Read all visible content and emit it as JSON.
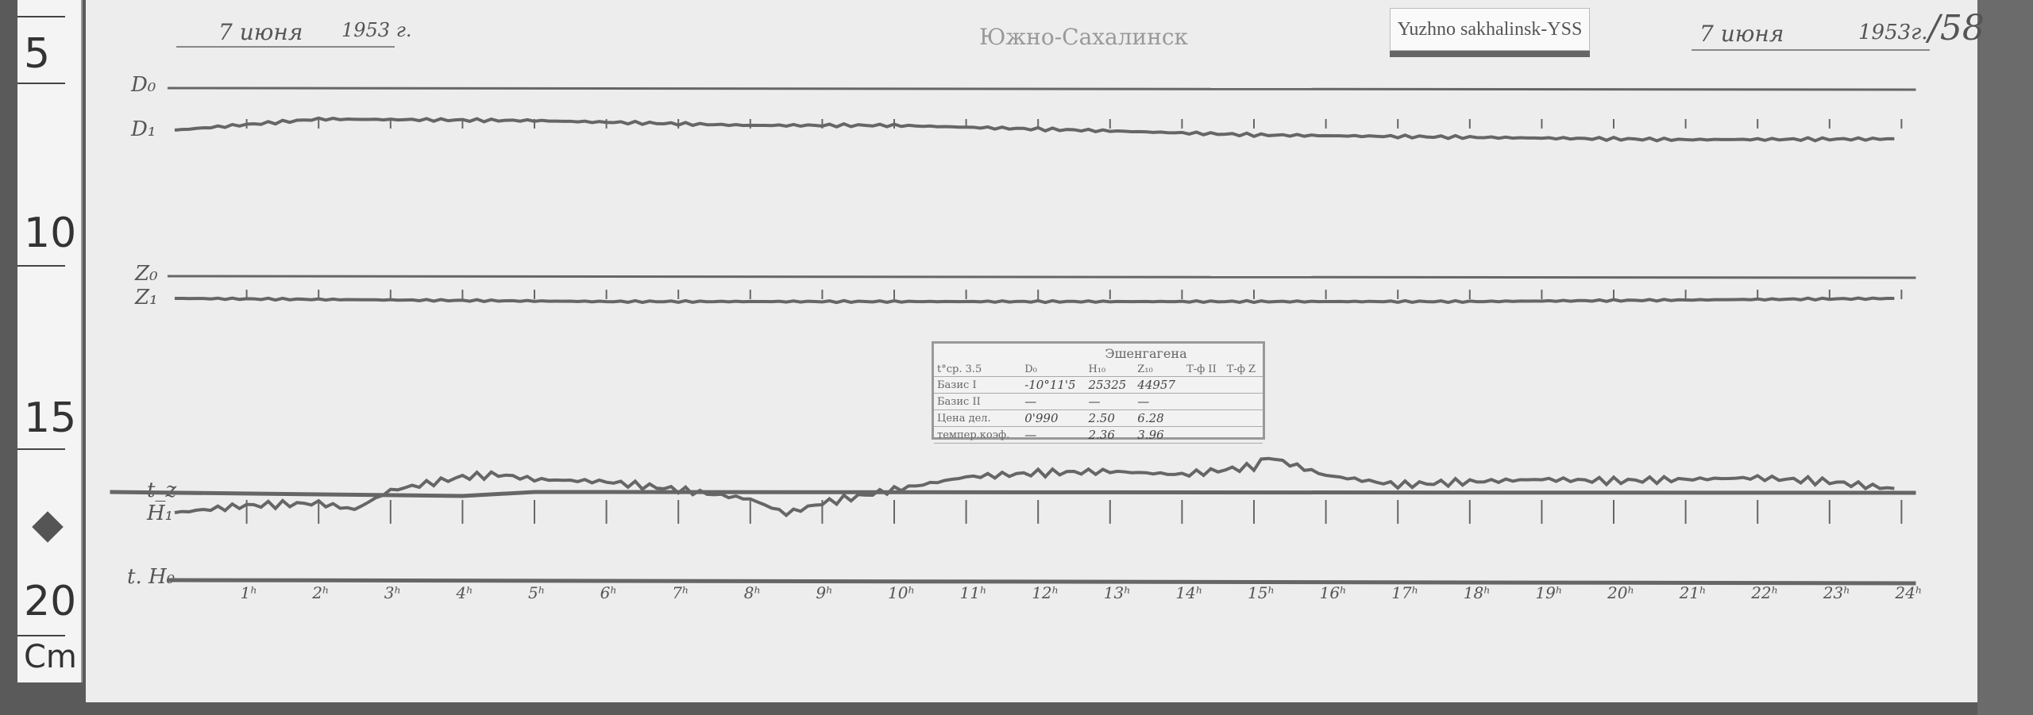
{
  "ruler": {
    "marks": [
      "5",
      "10",
      "15",
      "20"
    ],
    "unit": "Cm"
  },
  "header": {
    "left_date": "7 июня",
    "left_year": "1953 г.",
    "station": "Южно-Сахалинск",
    "tag": "Yuzhno sakhalinsk-YSS",
    "right_date": "7 июня",
    "right_year": "1953г.",
    "sheet_number": "/58"
  },
  "trace_labels": {
    "d0": "D₀",
    "d1": "D₁",
    "z0": "Z₀",
    "z1": "Z₁",
    "tz": "t_z",
    "h": "H₁",
    "th": "t. H₀"
  },
  "calibration_table": {
    "title": "Эшенгагена",
    "headers": [
      "t°ср. 3.5",
      "D₀",
      "H₁₀",
      "Z₁₀",
      "Т-ф II",
      "Т-ф Z"
    ],
    "rows": [
      [
        "Базис I",
        "-10°11'5",
        "25325",
        "44957",
        "",
        ""
      ],
      [
        "Базис II",
        "—",
        "—",
        "—",
        "",
        ""
      ],
      [
        "Цена дел.",
        "0'990",
        "2.50",
        "6.28",
        "",
        ""
      ],
      [
        "темпер.коэф.",
        "—",
        "2.36",
        "3.96",
        "",
        ""
      ]
    ]
  },
  "time_axis": {
    "hours": [
      "1ʰ",
      "2ʰ",
      "3ʰ",
      "4ʰ",
      "5ʰ",
      "6ʰ",
      "7ʰ",
      "8ʰ",
      "9ʰ",
      "10ʰ",
      "11ʰ",
      "12ʰ",
      "13ʰ",
      "14ʰ",
      "15ʰ",
      "16ʰ",
      "17ʰ",
      "18ʰ",
      "19ʰ",
      "20ʰ",
      "21ʰ",
      "22ʰ",
      "23ʰ",
      "24ʰ"
    ]
  },
  "colors": {
    "paper": "#ededed",
    "trace": "#666666",
    "frame": "#5a5a5a"
  }
}
